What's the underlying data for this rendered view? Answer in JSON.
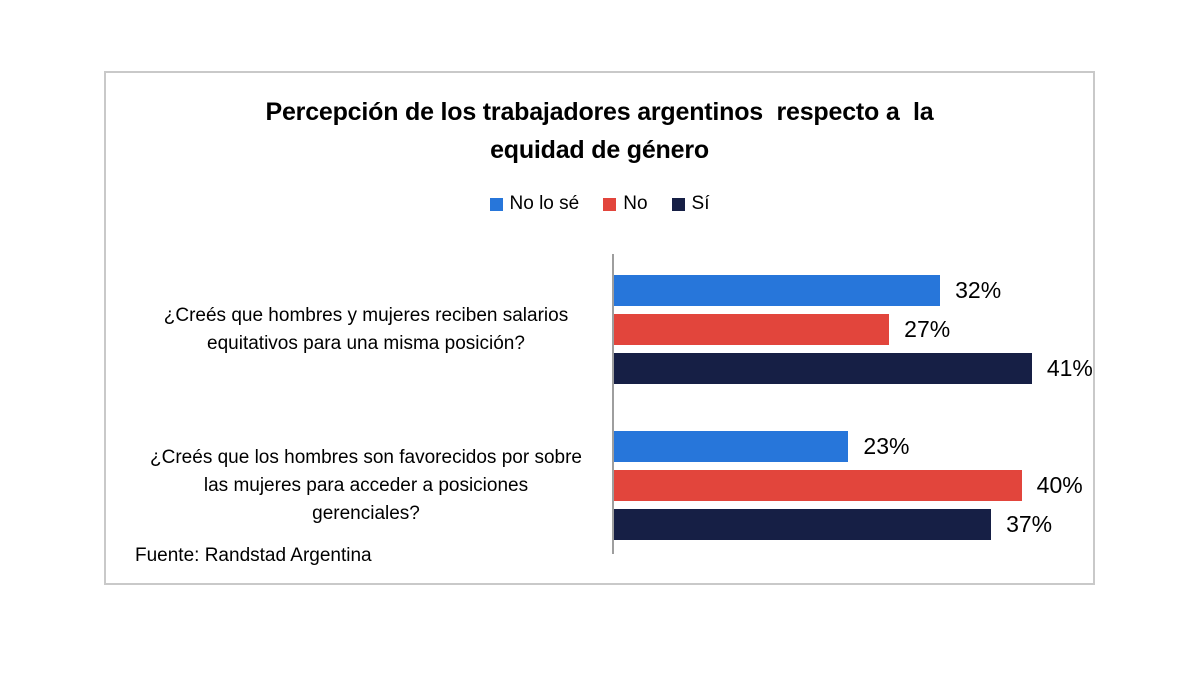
{
  "title": {
    "lines": [
      "Percepción de los trabajadores argentinos  respecto a  la",
      "equidad de género"
    ]
  },
  "footer": {
    "source": "Fuente: Randstad Argentina"
  },
  "chart_data": {
    "type": "bar",
    "orientation": "horizontal",
    "title": "Percepción de los trabajadores argentinos respecto a la equidad de género",
    "categories": [
      [
        "¿Creés que hombres y mujeres reciben salarios",
        "equitativos para una misma posición?"
      ],
      [
        "¿Creés que los hombres son favorecidos por sobre",
        "las mujeres para acceder a posiciones",
        "gerenciales?"
      ]
    ],
    "series": [
      {
        "name": "No lo sé",
        "color": "#2776DA",
        "values": [
          32,
          23
        ]
      },
      {
        "name": "No",
        "color": "#E2453C",
        "values": [
          27,
          40
        ]
      },
      {
        "name": "Sí",
        "color": "#161F45",
        "values": [
          41,
          37
        ]
      }
    ],
    "value_suffix": "%",
    "xlim": [
      0,
      47
    ],
    "grid": false,
    "legend_position": "top",
    "source": "Fuente: Randstad Argentina"
  },
  "colors": {
    "background": "#ffffff",
    "frame_border": "#c9c9c9",
    "axis": "#9e9e9e",
    "text": "#000000"
  }
}
